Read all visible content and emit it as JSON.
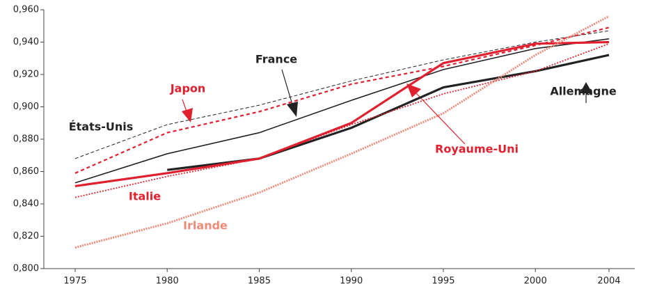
{
  "chart_data": {
    "type": "line",
    "x": [
      1975,
      1980,
      1985,
      1990,
      1995,
      2000,
      2004
    ],
    "xlim": [
      1973.3,
      2005.4
    ],
    "xticks": [
      1975,
      1980,
      1985,
      1990,
      1995,
      2000,
      2004
    ],
    "ylim": [
      0.8,
      0.96
    ],
    "yticks": [
      {
        "value": 0.8,
        "label": "0,800"
      },
      {
        "value": 0.82,
        "label": "0,820"
      },
      {
        "value": 0.84,
        "label": "0,840"
      },
      {
        "value": 0.86,
        "label": "0,860"
      },
      {
        "value": 0.88,
        "label": "0,880"
      },
      {
        "value": 0.9,
        "label": "0,900"
      },
      {
        "value": 0.92,
        "label": "0,920"
      },
      {
        "value": 0.94,
        "label": "0,940"
      },
      {
        "value": 0.96,
        "label": "0,960"
      }
    ],
    "grid": false,
    "series": [
      {
        "name": "États-Unis",
        "color": "#222222",
        "style": "dashed",
        "values": [
          0.868,
          0.889,
          0.901,
          0.916,
          0.929,
          0.94,
          0.947
        ]
      },
      {
        "name": "France",
        "color": "#222222",
        "style": "solid",
        "values": [
          0.853,
          0.871,
          0.884,
          0.904,
          0.923,
          0.936,
          0.942
        ]
      },
      {
        "name": "Japon",
        "color": "#e0202e",
        "style": "dashed-thick",
        "values": [
          0.859,
          0.884,
          0.897,
          0.914,
          0.925,
          0.938,
          0.949
        ]
      },
      {
        "name": "Allemagne",
        "color": "#222222",
        "style": "thick",
        "values": [
          null,
          0.861,
          0.868,
          0.887,
          0.912,
          0.922,
          0.932
        ]
      },
      {
        "name": "Italie",
        "color": "#e0202e",
        "style": "thick",
        "values": [
          0.851,
          0.859,
          0.868,
          0.89,
          0.927,
          0.939,
          0.94
        ]
      },
      {
        "name": "Royaume-Uni",
        "color": "#e0202e",
        "style": "dotted",
        "values": [
          0.844,
          0.857,
          0.868,
          0.889,
          0.908,
          0.922,
          0.939
        ]
      },
      {
        "name": "Irlande",
        "color": "#f08a78",
        "style": "dotted-thick",
        "values": [
          0.813,
          0.828,
          0.847,
          0.871,
          0.896,
          0.932,
          0.956
        ]
      }
    ]
  }
}
